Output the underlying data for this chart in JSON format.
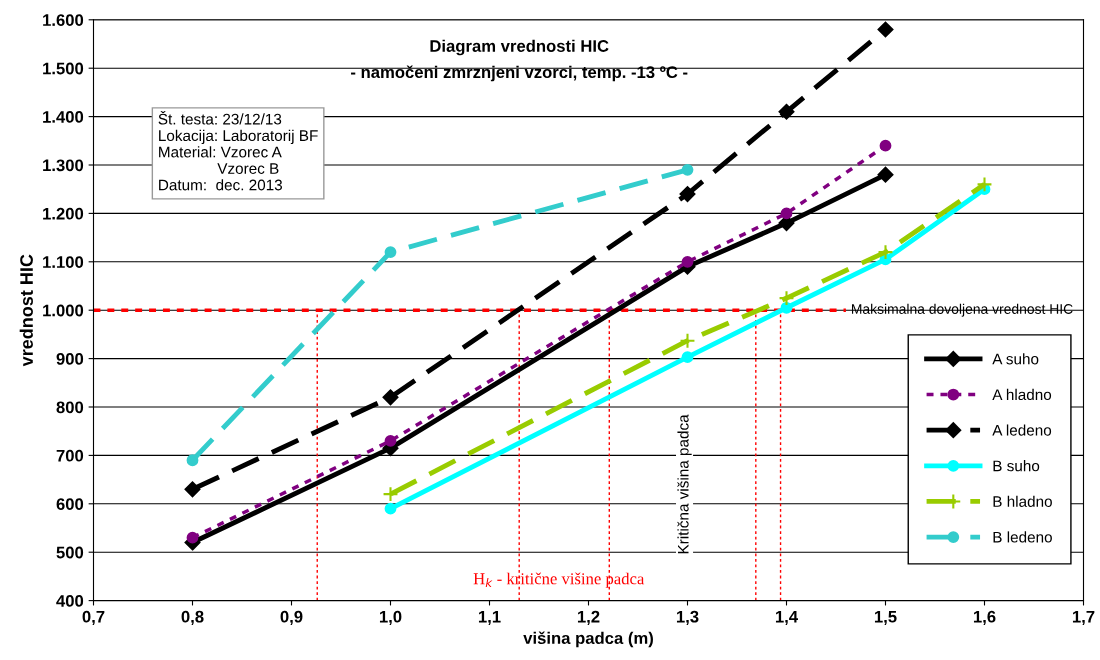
{
  "chart_data": {
    "type": "line",
    "title": "Diagram vrednosti HIC",
    "subtitle": "- namočeni zmrznjeni vzorci, temp. -13 ºC -",
    "xlabel": "višina padca (m)",
    "ylabel": "vrednost HIC",
    "annotations": [
      "Št. testa: 23/12/13\nLokacija: Laboratorij BF\nMaterial: Vzorec A\n              Vzorec B\nDatum:  dec. 2013",
      "H$_{k}$ - kritične višine padca",
      "Kritična višina padca"
    ],
    "series": [
      {
        "name": "A suho",
        "color": "#000000",
        "marker": "diamond",
        "line_style": "solid",
        "x": [
          0.8,
          1.0,
          1.3,
          1.4,
          1.5
        ],
        "values": [
          520,
          715,
          1090,
          1180,
          1280
        ]
      },
      {
        "name": "A hladno",
        "color": "#800080",
        "marker": "circle",
        "line_style": "dotted",
        "x": [
          0.8,
          1.0,
          1.3,
          1.4,
          1.5
        ],
        "values": [
          530,
          730,
          1100,
          1200,
          1340
        ]
      },
      {
        "name": "A ledeno",
        "color": "#000000",
        "marker": "diamond",
        "line_style": "dashed",
        "x": [
          0.8,
          1.0,
          1.3,
          1.4,
          1.5
        ],
        "values": [
          630,
          820,
          1240,
          1410,
          1580
        ]
      },
      {
        "name": "B suho",
        "color": "#00ffff",
        "marker": "circle",
        "line_style": "solid",
        "x": [
          1.0,
          1.3,
          1.4,
          1.5,
          1.6
        ],
        "values": [
          590,
          903,
          1005,
          1105,
          1250
        ]
      },
      {
        "name": "B hladno",
        "color": "#99cc00",
        "marker": "cross",
        "line_style": "dashed",
        "x": [
          1.0,
          1.3,
          1.4,
          1.5,
          1.6
        ],
        "values": [
          620,
          937,
          1025,
          1120,
          1260
        ]
      },
      {
        "name": "B ledeno",
        "color": "#33cccc",
        "marker": "circle",
        "line_style": "dashed",
        "x": [
          0.8,
          1.0,
          1.3
        ],
        "values": [
          690,
          1120,
          1290
        ]
      }
    ],
    "xlim": [
      0.7,
      1.7
    ],
    "xticks": [
      {
        "value": 0.7,
        "label": "0,7"
      },
      {
        "value": 0.8,
        "label": "0,8"
      },
      {
        "value": 0.9,
        "label": "0,9"
      },
      {
        "value": 1.0,
        "label": "1,0"
      },
      {
        "value": 1.1,
        "label": "1,1"
      },
      {
        "value": 1.2,
        "label": "1,2"
      },
      {
        "value": 1.3,
        "label": "1,3"
      },
      {
        "value": 1.4,
        "label": "1,4"
      },
      {
        "value": 1.5,
        "label": "1,5"
      },
      {
        "value": 1.6,
        "label": "1,6"
      },
      {
        "value": 1.7,
        "label": "1,7"
      }
    ],
    "ylim": [
      400,
      1600
    ],
    "yticks": [
      400,
      500,
      600,
      700,
      800,
      900,
      {
        "value": 1000,
        "label": "1.000"
      },
      {
        "value": 1100,
        "label": "1.100"
      },
      {
        "value": 1200,
        "label": "1.200"
      },
      {
        "value": 1300,
        "label": "1.300"
      },
      {
        "value": 1400,
        "label": "1.400"
      },
      {
        "value": 1500,
        "label": "1.500"
      },
      {
        "value": 1600,
        "label": "1.600"
      }
    ],
    "ref_lines": [
      {
        "axis": "y",
        "value": 1000,
        "label": "Maksimalna dovoljena vrednost HIC",
        "color": "#ff0000",
        "line_style": "dotted"
      },
      {
        "axis": "x",
        "value": 0.926,
        "color": "#ff0000",
        "line_style": "dotted"
      },
      {
        "axis": "x",
        "value": 1.13,
        "color": "#ff0000",
        "line_style": "dotted"
      },
      {
        "axis": "x",
        "value": 1.221,
        "color": "#ff0000",
        "line_style": "dotted"
      },
      {
        "axis": "x",
        "value": 1.369,
        "color": "#ff0000",
        "line_style": "dotted"
      },
      {
        "axis": "x",
        "value": 1.394,
        "color": "#ff0000",
        "line_style": "dotted"
      }
    ],
    "grid": "y",
    "legend": "bottom right"
  }
}
